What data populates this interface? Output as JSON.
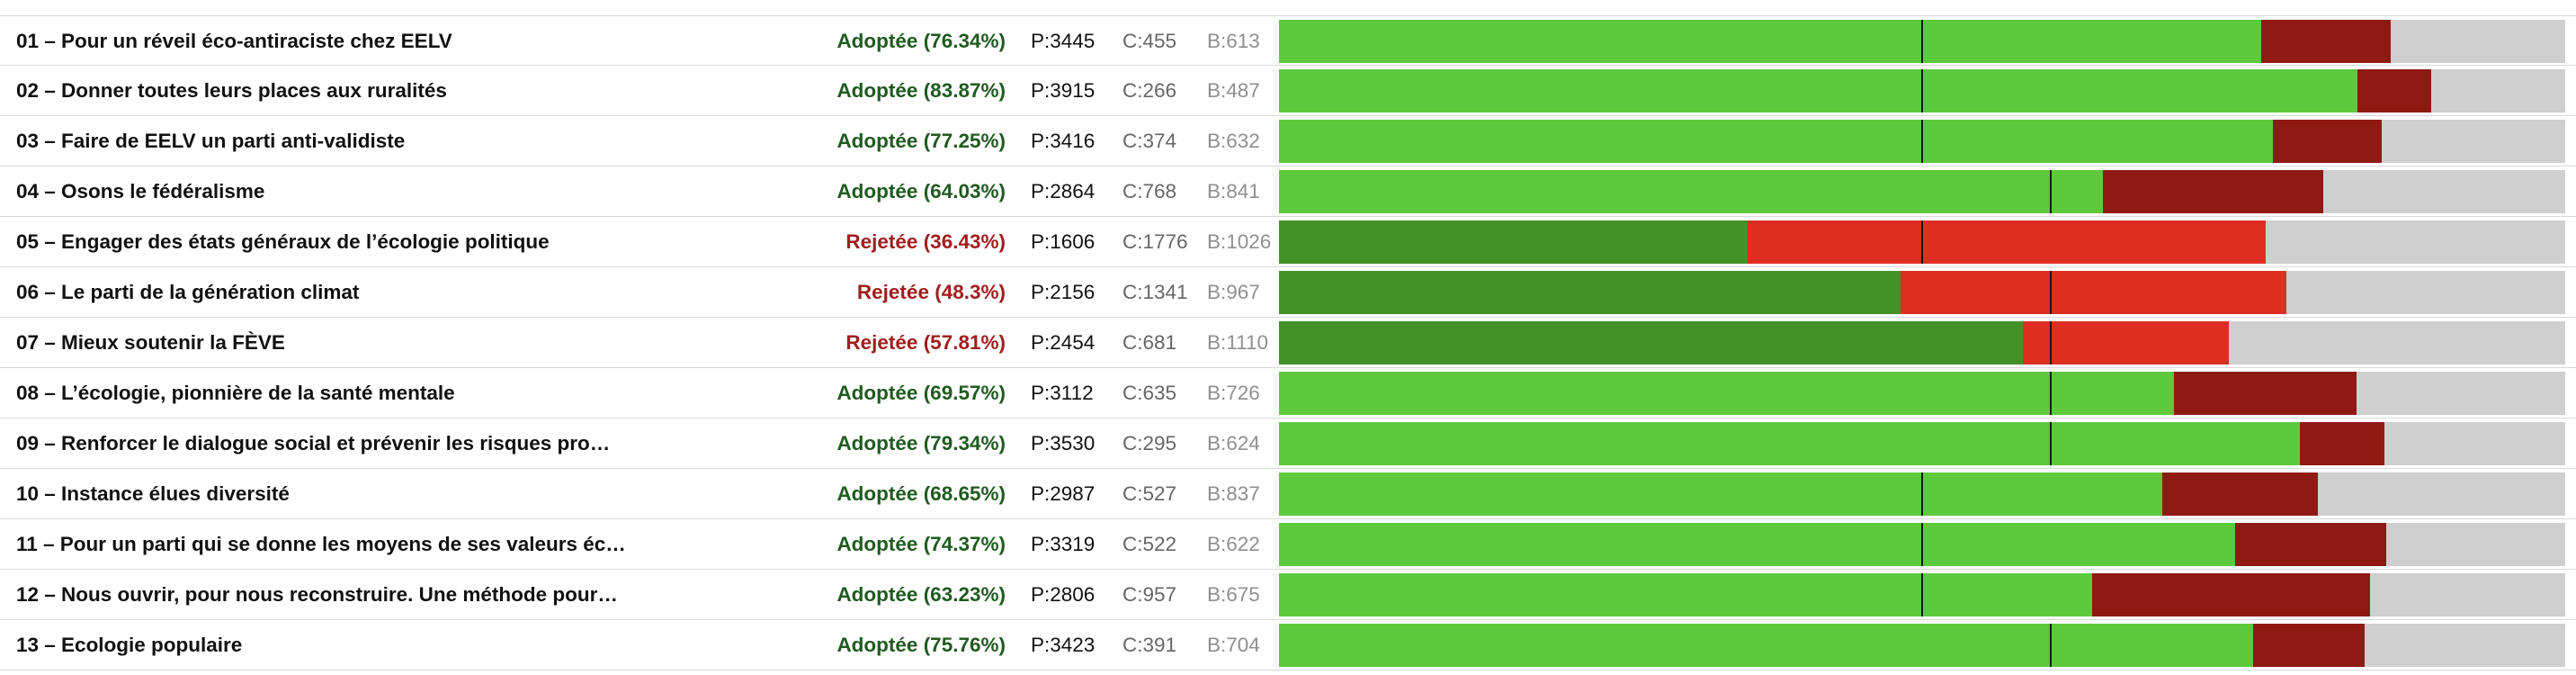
{
  "colors": {
    "adopted_pour": "#5dc93c",
    "adopted_contre": "#8f1a14",
    "rejected_pour": "#429228",
    "rejected_contre": "#de2e22",
    "blanc": "#cfcfcf",
    "status_adopted": "#1f5a1f",
    "status_rejected": "#a11d1d"
  },
  "chart_data": {
    "type": "bar",
    "stacked": true,
    "orientation": "horizontal",
    "legend": "none",
    "categories": [
      "01 – Pour un réveil éco-antiraciste chez EELV",
      "02 – Donner toutes leurs places aux ruralités",
      "03 – Faire de EELV un parti anti-validiste",
      "04 – Osons le fédéralisme",
      "05 – Engager des états généraux de l’écologie politique",
      "06 – Le parti de la génération climat",
      "07 – Mieux soutenir la FÈVE",
      "08 – L’écologie, pionnière de la santé mentale",
      "09 – Renforcer le dialogue social et prévenir les risques pro…",
      "10 – Instance élues diversité",
      "11 – Pour un parti qui se donne les moyens de ses valeurs éc…",
      "12 – Nous ouvrir, pour nous reconstruire. Une méthode pour…",
      "13 – Ecologie populaire"
    ],
    "rows": [
      {
        "status": "Adoptée (76.34%)",
        "adopted": true,
        "p_label": "P:3445",
        "c_label": "C:455",
        "b_label": "B:613",
        "pour": 3445,
        "contre": 455,
        "blanc": 613,
        "threshold": 0.5
      },
      {
        "status": "Adoptée (83.87%)",
        "adopted": true,
        "p_label": "P:3915",
        "c_label": "C:266",
        "b_label": "B:487",
        "pour": 3915,
        "contre": 266,
        "blanc": 487,
        "threshold": 0.5
      },
      {
        "status": "Adoptée (77.25%)",
        "adopted": true,
        "p_label": "P:3416",
        "c_label": "C:374",
        "b_label": "B:632",
        "pour": 3416,
        "contre": 374,
        "blanc": 632,
        "threshold": 0.5
      },
      {
        "status": "Adoptée (64.03%)",
        "adopted": true,
        "p_label": "P:2864",
        "c_label": "C:768",
        "b_label": "B:841",
        "pour": 2864,
        "contre": 768,
        "blanc": 841,
        "threshold": 0.6
      },
      {
        "status": "Rejetée (36.43%)",
        "adopted": false,
        "p_label": "P:1606",
        "c_label": "C:1776",
        "b_label": "B:1026",
        "pour": 1606,
        "contre": 1776,
        "blanc": 1026,
        "threshold": 0.5
      },
      {
        "status": "Rejetée (48.3%)",
        "adopted": false,
        "p_label": "P:2156",
        "c_label": "C:1341",
        "b_label": "B:967",
        "pour": 2156,
        "contre": 1341,
        "blanc": 967,
        "threshold": 0.6
      },
      {
        "status": "Rejetée (57.81%)",
        "adopted": false,
        "p_label": "P:2454",
        "c_label": "C:681",
        "b_label": "B:1110",
        "pour": 2454,
        "contre": 681,
        "blanc": 1110,
        "threshold": 0.6
      },
      {
        "status": "Adoptée (69.57%)",
        "adopted": true,
        "p_label": "P:3112",
        "c_label": "C:635",
        "b_label": "B:726",
        "pour": 3112,
        "contre": 635,
        "blanc": 726,
        "threshold": 0.6
      },
      {
        "status": "Adoptée (79.34%)",
        "adopted": true,
        "p_label": "P:3530",
        "c_label": "C:295",
        "b_label": "B:624",
        "pour": 3530,
        "contre": 295,
        "blanc": 624,
        "threshold": 0.6
      },
      {
        "status": "Adoptée (68.65%)",
        "adopted": true,
        "p_label": "P:2987",
        "c_label": "C:527",
        "b_label": "B:837",
        "pour": 2987,
        "contre": 527,
        "blanc": 837,
        "threshold": 0.5
      },
      {
        "status": "Adoptée (74.37%)",
        "adopted": true,
        "p_label": "P:3319",
        "c_label": "C:522",
        "b_label": "B:622",
        "pour": 3319,
        "contre": 522,
        "blanc": 622,
        "threshold": 0.5
      },
      {
        "status": "Adoptée (63.23%)",
        "adopted": true,
        "p_label": "P:2806",
        "c_label": "C:957",
        "b_label": "B:675",
        "pour": 2806,
        "contre": 957,
        "blanc": 675,
        "threshold": 0.5
      },
      {
        "status": "Adoptée (75.76%)",
        "adopted": true,
        "p_label": "P:3423",
        "c_label": "C:391",
        "b_label": "B:704",
        "pour": 3423,
        "contre": 391,
        "blanc": 704,
        "threshold": 0.6
      }
    ]
  }
}
